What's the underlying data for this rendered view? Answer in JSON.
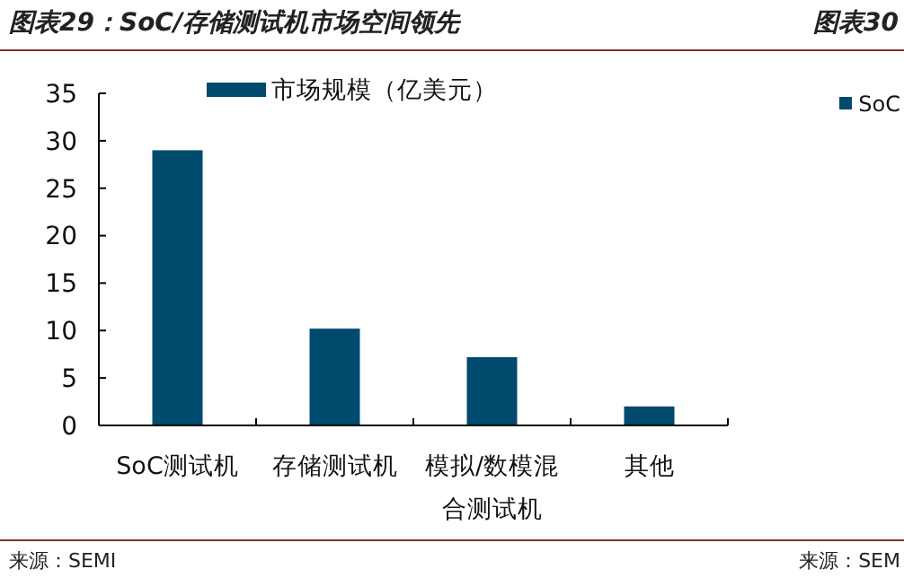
{
  "chart_data": {
    "type": "bar",
    "title": "图表29：SoC/存储测试机市场空间领先",
    "categories": [
      "SoC测试机",
      "存储测试机",
      "模拟/数模混合测试机",
      "其他"
    ],
    "series": [
      {
        "name": "市场规模（亿美元）",
        "color": "#004a6e",
        "values": [
          29.0,
          10.2,
          7.2,
          2.0
        ]
      }
    ],
    "ylim": [
      0,
      35
    ],
    "yticks": [
      0,
      5,
      10,
      15,
      20,
      25,
      30,
      35
    ],
    "grid": false,
    "legend": "top",
    "annotations": [
      "来源：SEMI",
      "图表30",
      "SoC",
      "来源：SEM"
    ]
  }
}
